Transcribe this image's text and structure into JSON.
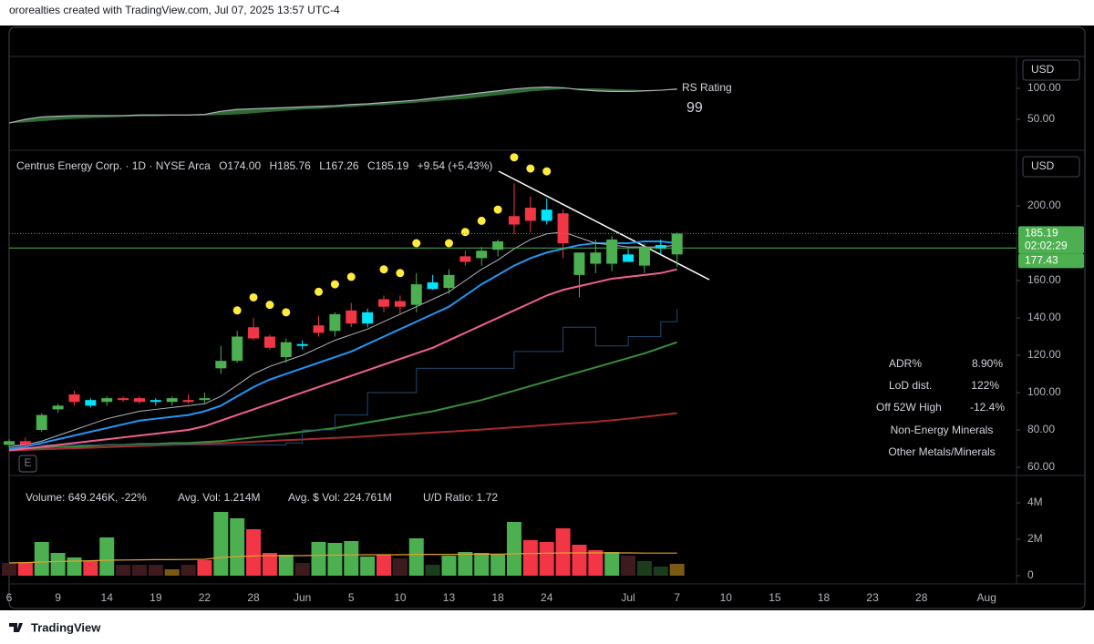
{
  "header": "ororealties created with TradingView.com, Jul 07, 2025 13:57 UTC-4",
  "footer": "TradingView",
  "earnings_marker": "E",
  "stats": {
    "rows": [
      [
        "ADR%",
        "8.90%"
      ],
      [
        "LoD dist.",
        "122%"
      ],
      [
        "Off 52W High",
        "-12.4%"
      ]
    ],
    "sector": "Non-Energy Minerals",
    "industry": "Other Metals/Minerals"
  },
  "chart_data": [
    {
      "type": "area",
      "title": "RS Rating",
      "currency": "USD",
      "color": "#b2b5be",
      "fill": "#2e6b34",
      "ylim": [
        0,
        151.5
      ],
      "yticks": [
        {
          "value": 50,
          "label": "50.00"
        },
        {
          "value": 100,
          "label": "100.00"
        }
      ],
      "grid": false,
      "values": [
        44,
        50,
        54,
        55,
        56,
        56,
        56,
        56,
        57,
        57,
        57,
        57,
        58,
        63,
        66,
        67,
        68,
        69,
        70,
        71,
        72,
        74,
        75,
        77,
        79,
        81,
        84,
        87,
        90,
        93,
        96,
        99,
        101,
        102,
        101,
        98,
        96,
        95,
        95,
        96,
        97,
        99
      ],
      "ma": [
        44,
        45,
        47,
        49,
        51,
        52,
        53,
        54,
        55,
        55,
        56,
        56,
        56,
        57,
        58,
        60,
        62,
        64,
        66,
        67,
        69,
        70,
        72,
        73,
        75,
        77,
        79,
        81,
        83,
        86,
        89,
        92,
        95,
        97,
        99,
        100,
        100,
        99,
        98,
        97,
        97,
        97
      ]
    },
    {
      "type": "candlestick",
      "title": "Centrus Energy Corp. · 1D · NYSE Arca",
      "currency": "USD",
      "legend": [
        "O174.00",
        "H185.76",
        "L167.26",
        "C185.19",
        "+9.54 (+5.43%)"
      ],
      "ylim": [
        55.6,
        228.3
      ],
      "yticks": [
        {
          "value": 60,
          "label": "60.00"
        },
        {
          "value": 80,
          "label": "80.00"
        },
        {
          "value": 100,
          "label": "100.00"
        },
        {
          "value": 120,
          "label": "120.00"
        },
        {
          "value": 140,
          "label": "140.00"
        },
        {
          "value": 160,
          "label": "160.00"
        },
        {
          "value": 200,
          "label": "200.00"
        }
      ],
      "grid": false,
      "categories": [
        "6",
        null,
        null,
        "9",
        null,
        null,
        "14",
        null,
        null,
        "19",
        null,
        null,
        "22",
        null,
        null,
        "28",
        null,
        null,
        "Jun",
        null,
        null,
        "5",
        null,
        null,
        "10",
        null,
        null,
        "13",
        null,
        null,
        "18",
        null,
        null,
        "24",
        null,
        null,
        null,
        null,
        "Jul",
        null,
        null,
        "7"
      ],
      "future_categories": [
        null,
        null,
        "10",
        null,
        null,
        "15",
        null,
        null,
        "18",
        null,
        null,
        "23",
        null,
        null,
        "28",
        null,
        null,
        null,
        "Aug"
      ],
      "open": [
        72,
        74,
        80,
        91,
        99,
        96,
        95,
        97,
        97,
        96,
        95,
        96,
        96,
        113,
        117,
        135,
        130,
        119,
        126,
        136,
        133,
        144,
        143,
        150,
        149,
        147,
        159,
        156,
        173,
        172,
        176.5,
        194.5,
        199,
        198,
        196,
        163,
        169,
        169,
        174,
        168,
        179,
        174
      ],
      "high": [
        75,
        76,
        89,
        94,
        101,
        97,
        98,
        98,
        98,
        97,
        98,
        99,
        100,
        125,
        133,
        140,
        131,
        129,
        128,
        141,
        143,
        148,
        145,
        152,
        152,
        164,
        163,
        166,
        176,
        178,
        182,
        212,
        205,
        204,
        198,
        175,
        182,
        184,
        177,
        180,
        182,
        185.76
      ],
      "low": [
        70,
        71,
        79,
        89,
        93,
        92,
        93,
        95,
        94,
        93,
        93,
        94,
        94,
        110,
        116,
        128,
        123,
        116,
        123,
        130,
        130,
        135,
        135,
        143,
        142,
        143,
        155,
        153,
        168,
        168,
        173,
        185,
        186,
        190,
        172,
        151,
        164,
        165,
        170,
        164,
        174,
        167.26
      ],
      "close": [
        74,
        72,
        88,
        93,
        95,
        93,
        97,
        96,
        95,
        95,
        97,
        95,
        97,
        117,
        130,
        129,
        124,
        127,
        125,
        132,
        142,
        137,
        137,
        146,
        146,
        158,
        155.5,
        163,
        170,
        176,
        181,
        190,
        192,
        192,
        180,
        175,
        175,
        182,
        170,
        178,
        177,
        185.19
      ],
      "colors": [
        "#4caf50",
        "#f23645",
        "#4caf50",
        "#4caf50",
        "#f23645",
        "#00e5ff",
        "#4caf50",
        "#f23645",
        "#f23645",
        "#00e5ff",
        "#4caf50",
        "#f23645",
        "#4caf50",
        "#4caf50",
        "#4caf50",
        "#f23645",
        "#f23645",
        "#4caf50",
        "#00e5ff",
        "#f23645",
        "#4caf50",
        "#f23645",
        "#00e5ff",
        "#f23645",
        "#f23645",
        "#4caf50",
        "#00e5ff",
        "#4caf50",
        "#f23645",
        "#4caf50",
        "#4caf50",
        "#f23645",
        "#f23645",
        "#00e5ff",
        "#f23645",
        "#4caf50",
        "#4caf50",
        "#4caf50",
        "#00e5ff",
        "#4caf50",
        "#00e5ff",
        "#4caf50"
      ],
      "lines": [
        {
          "color": "#a52a2a",
          "values": [
            69,
            69.3,
            69.6,
            69.9,
            70.2,
            70.5,
            70.8,
            71.1,
            71.4,
            71.7,
            72,
            72.3,
            72.6,
            72.9,
            73.3,
            73.7,
            74.1,
            74.5,
            74.9,
            75.3,
            75.7,
            76.1,
            76.6,
            77.1,
            77.6,
            78.1,
            78.6,
            79.1,
            79.6,
            80.2,
            80.8,
            81.4,
            82,
            82.6,
            83.2,
            83.8,
            84.4,
            85.2,
            86,
            87,
            88,
            89
          ]
        },
        {
          "color": "#388e3c",
          "values": [
            70,
            70,
            70.5,
            71,
            71,
            71.5,
            72,
            72,
            72.5,
            72.5,
            73,
            73,
            73.5,
            74,
            75,
            76,
            77,
            78,
            79,
            80,
            81,
            82.5,
            84,
            85.5,
            87,
            88.5,
            90,
            92,
            94,
            96,
            98.5,
            101,
            103.5,
            106,
            108.5,
            111,
            113.5,
            116,
            118.5,
            121,
            124,
            127
          ]
        },
        {
          "color": "#1f4a6e",
          "step": true,
          "values": [
            72,
            72,
            72,
            72,
            72,
            72,
            72,
            72,
            72,
            72,
            72,
            72,
            72,
            72,
            72,
            72,
            72,
            73,
            80,
            80,
            88,
            88,
            100,
            100,
            100,
            113,
            113,
            113,
            113,
            113,
            113,
            122,
            122,
            122,
            135,
            135,
            125,
            125,
            130,
            130,
            138,
            145
          ]
        },
        {
          "color": "#f06292",
          "values": [
            69,
            70,
            71,
            72,
            73,
            74,
            75,
            76,
            77,
            78,
            79,
            80,
            82,
            85,
            88,
            91,
            94,
            97,
            100,
            103,
            106,
            109,
            112,
            115,
            118,
            121,
            124,
            128,
            132,
            136,
            140,
            144,
            148,
            152,
            155,
            157,
            159,
            161,
            162,
            163,
            164,
            166
          ]
        },
        {
          "color": "#2196f3",
          "values": [
            70,
            71,
            73,
            75,
            77,
            79,
            81,
            83,
            85,
            86,
            87,
            88,
            90,
            93,
            98,
            103,
            107,
            110,
            113,
            116,
            119,
            122,
            126,
            130,
            134,
            138,
            142,
            146,
            152,
            158,
            163,
            168,
            172,
            175,
            177,
            179,
            180,
            180,
            180,
            181,
            181,
            180
          ]
        },
        {
          "color": "#b2b5be",
          "values": [
            71,
            72,
            74,
            77,
            80,
            83,
            86,
            88,
            90,
            91,
            92,
            93,
            94,
            98,
            104,
            110,
            114,
            117,
            120,
            124,
            128,
            131,
            134,
            138,
            142,
            146,
            150,
            154,
            160,
            166,
            171,
            177,
            182,
            185,
            186,
            183,
            180,
            179,
            178,
            178,
            178,
            179
          ]
        }
      ],
      "dots": {
        "color": "#ffeb3b",
        "values": [
          null,
          null,
          null,
          null,
          null,
          null,
          null,
          null,
          null,
          null,
          null,
          null,
          null,
          null,
          144,
          151,
          147,
          143,
          null,
          154,
          158,
          162,
          null,
          166,
          164,
          180,
          null,
          180,
          186,
          192,
          198,
          226,
          220,
          218.5,
          null,
          null,
          null,
          null,
          null,
          null,
          null,
          null
        ]
      },
      "level": 177.43,
      "level_color": "#4caf50",
      "countdown": "02:02:29"
    },
    {
      "type": "bar",
      "currency": "M",
      "legend": [
        "Volume: 649.246K, -22%",
        "Avg. Vol: 1.214M",
        "Avg. $ Vol: 224.761M",
        "U/D Ratio: 1.72"
      ],
      "ylim": [
        -0.4,
        5
      ],
      "yticks": [
        0,
        {
          "value": 2,
          "label": "2M"
        },
        {
          "value": 4,
          "label": "4M"
        }
      ],
      "grid": false,
      "values": [
        0.7,
        0.7,
        1.85,
        1.25,
        1.0,
        0.8,
        2.1,
        0.6,
        0.6,
        0.6,
        0.35,
        0.6,
        0.85,
        3.5,
        3.15,
        2.55,
        1.25,
        1.15,
        0.7,
        1.85,
        1.8,
        1.9,
        1.05,
        1.15,
        0.95,
        2.05,
        0.6,
        1.1,
        1.3,
        1.25,
        1.15,
        2.95,
        1.95,
        1.85,
        2.6,
        1.7,
        1.4,
        1.3,
        1.1,
        0.8,
        0.5,
        0.649246
      ],
      "colors": [
        "#3d1a1d",
        "#f23645",
        "#4caf50",
        "#4caf50",
        "#4caf50",
        "#f23645",
        "#4caf50",
        "#3d1a1d",
        "#3d1a1d",
        "#3d1a1d",
        "#7a5a12",
        "#3d1a1d",
        "#f23645",
        "#4caf50",
        "#4caf50",
        "#f23645",
        "#f23645",
        "#4caf50",
        "#3d1a1d",
        "#4caf50",
        "#4caf50",
        "#4caf50",
        "#4caf50",
        "#f23645",
        "#3d1a1d",
        "#4caf50",
        "#1b3d1e",
        "#4caf50",
        "#4caf50",
        "#4caf50",
        "#4caf50",
        "#4caf50",
        "#f23645",
        "#f23645",
        "#f23645",
        "#f23645",
        "#f23645",
        "#4caf50",
        "#3d1a1d",
        "#1b3d1e",
        "#1b3d1e",
        "#7a5a12"
      ],
      "average": {
        "color": "#e0a030",
        "values": [
          0.7,
          0.72,
          0.75,
          0.78,
          0.8,
          0.82,
          0.85,
          0.86,
          0.87,
          0.88,
          0.88,
          0.89,
          0.9,
          1.0,
          1.05,
          1.08,
          1.1,
          1.1,
          1.1,
          1.12,
          1.13,
          1.14,
          1.15,
          1.15,
          1.15,
          1.17,
          1.17,
          1.17,
          1.18,
          1.18,
          1.18,
          1.2,
          1.22,
          1.23,
          1.25,
          1.25,
          1.25,
          1.25,
          1.25,
          1.24,
          1.24,
          1.24
        ]
      }
    }
  ]
}
